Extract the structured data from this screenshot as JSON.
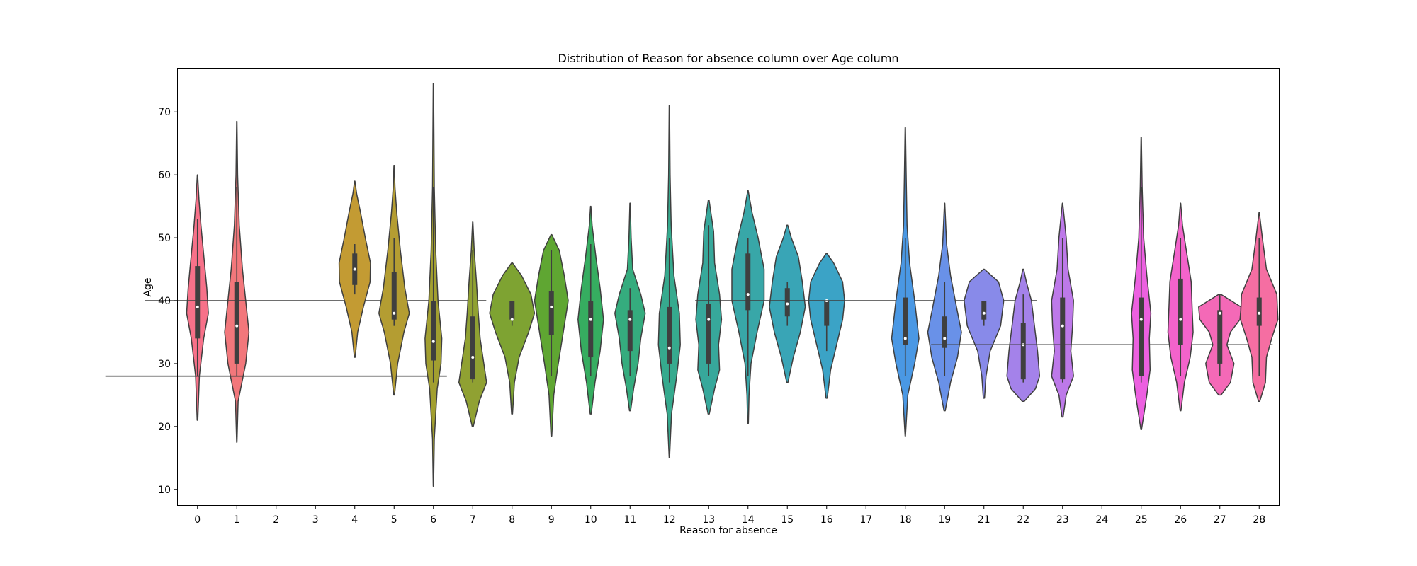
{
  "chart_data": {
    "type": "violin",
    "title": "Distribution of Reason for absence column over Age column",
    "xlabel": "Reason for absence",
    "ylabel": "Age",
    "ylim": [
      7.5,
      77
    ],
    "yticks": [
      10,
      20,
      30,
      40,
      50,
      60,
      70
    ],
    "grid": false,
    "categories": [
      {
        "label": "0",
        "color": "#f77189",
        "min": 21,
        "max": 60,
        "q1": 34,
        "median": 39,
        "q3": 45.5,
        "wlo": 28,
        "whi": 53,
        "bw": 7.3,
        "shape": [
          [
            21,
            0.02
          ],
          [
            28,
            0.12
          ],
          [
            34,
            0.4
          ],
          [
            38,
            0.7
          ],
          [
            42,
            0.6
          ],
          [
            46,
            0.45
          ],
          [
            52,
            0.22
          ],
          [
            56,
            0.1
          ],
          [
            60,
            0.01
          ]
        ]
      },
      {
        "label": "1",
        "color": "#f2777b",
        "min": 17.5,
        "max": 68.5,
        "q1": 30,
        "median": 36,
        "q3": 43,
        "wlo": 28,
        "whi": 58,
        "bw": 7.6,
        "shape": [
          [
            17.5,
            0.01
          ],
          [
            24,
            0.08
          ],
          [
            30,
            0.55
          ],
          [
            35,
            0.75
          ],
          [
            40,
            0.55
          ],
          [
            45,
            0.35
          ],
          [
            52,
            0.15
          ],
          [
            60,
            0.05
          ],
          [
            68.5,
            0.01
          ]
        ]
      },
      {
        "label": "2",
        "color": "#e78a3a",
        "min": 28,
        "max": 28,
        "q1": 28,
        "median": 28,
        "q3": 28,
        "wlo": 28,
        "whi": 28,
        "bw": 8.2,
        "shape": []
      },
      {
        "label": "3",
        "color": "#d5943a",
        "min": 40,
        "max": 40,
        "q1": 40,
        "median": 40,
        "q3": 40,
        "wlo": 40,
        "whi": 40,
        "bw": 8.2,
        "shape": []
      },
      {
        "label": "4",
        "color": "#c39b33",
        "min": 31,
        "max": 59,
        "q1": 42.5,
        "median": 45,
        "q3": 47.5,
        "wlo": 41,
        "whi": 49,
        "bw": 9.0,
        "shape": [
          [
            31,
            0.02
          ],
          [
            35,
            0.15
          ],
          [
            39,
            0.45
          ],
          [
            43,
            0.8
          ],
          [
            46,
            0.82
          ],
          [
            50,
            0.55
          ],
          [
            54,
            0.3
          ],
          [
            57,
            0.1
          ],
          [
            59,
            0.01
          ]
        ]
      },
      {
        "label": "5",
        "color": "#b49d32",
        "min": 25,
        "max": 61.5,
        "q1": 37,
        "median": 38,
        "q3": 44.5,
        "wlo": 36,
        "whi": 50,
        "bw": 8.4,
        "shape": [
          [
            25,
            0.02
          ],
          [
            30,
            0.2
          ],
          [
            35,
            0.55
          ],
          [
            38,
            0.85
          ],
          [
            42,
            0.6
          ],
          [
            48,
            0.35
          ],
          [
            54,
            0.15
          ],
          [
            58,
            0.05
          ],
          [
            61.5,
            0.01
          ]
        ]
      },
      {
        "label": "6",
        "color": "#a29f30",
        "min": 10.5,
        "max": 74.5,
        "q1": 30.5,
        "median": 33.5,
        "q3": 40,
        "wlo": 27,
        "whi": 58,
        "bw": 7.2,
        "shape": [
          [
            10.5,
            0.01
          ],
          [
            18,
            0.06
          ],
          [
            26,
            0.25
          ],
          [
            30,
            0.5
          ],
          [
            34,
            0.55
          ],
          [
            40,
            0.3
          ],
          [
            48,
            0.15
          ],
          [
            58,
            0.06
          ],
          [
            74.5,
            0.01
          ]
        ]
      },
      {
        "label": "7",
        "color": "#90a132",
        "min": 20,
        "max": 52.5,
        "q1": 27.5,
        "median": 31,
        "q3": 37.5,
        "wlo": 27,
        "whi": 48,
        "bw": 8.7,
        "shape": [
          [
            20,
            0.03
          ],
          [
            24,
            0.35
          ],
          [
            27,
            0.75
          ],
          [
            30,
            0.6
          ],
          [
            34,
            0.4
          ],
          [
            38,
            0.3
          ],
          [
            43,
            0.2
          ],
          [
            48,
            0.08
          ],
          [
            52.5,
            0.01
          ]
        ]
      },
      {
        "label": "8",
        "color": "#7ea332",
        "min": 22,
        "max": 46,
        "q1": 37,
        "median": 37,
        "q3": 40,
        "wlo": 36,
        "whi": 40,
        "bw": 11.1,
        "shape": [
          [
            22,
            0.02
          ],
          [
            27,
            0.1
          ],
          [
            31,
            0.3
          ],
          [
            35,
            0.7
          ],
          [
            38,
            0.95
          ],
          [
            41,
            0.8
          ],
          [
            44,
            0.4
          ],
          [
            46,
            0.02
          ]
        ]
      },
      {
        "label": "9",
        "color": "#5fa632",
        "min": 18.5,
        "max": 50.5,
        "q1": 34.5,
        "median": 39,
        "q3": 41.5,
        "wlo": 28,
        "whi": 48,
        "bw": 9.3,
        "shape": [
          [
            18.5,
            0.02
          ],
          [
            25,
            0.12
          ],
          [
            30,
            0.35
          ],
          [
            36,
            0.65
          ],
          [
            40,
            0.85
          ],
          [
            44,
            0.65
          ],
          [
            48,
            0.4
          ],
          [
            50.5,
            0.02
          ]
        ]
      },
      {
        "label": "10",
        "color": "#36ad60",
        "min": 22,
        "max": 55,
        "q1": 31,
        "median": 37,
        "q3": 40,
        "wlo": 28,
        "whi": 49,
        "bw": 8.0,
        "shape": [
          [
            22,
            0.03
          ],
          [
            27,
            0.25
          ],
          [
            32,
            0.55
          ],
          [
            37,
            0.75
          ],
          [
            42,
            0.55
          ],
          [
            47,
            0.3
          ],
          [
            52,
            0.08
          ],
          [
            55,
            0.01
          ]
        ]
      },
      {
        "label": "11",
        "color": "#35ac7e",
        "min": 22.5,
        "max": 55.5,
        "q1": 32,
        "median": 37,
        "q3": 38.5,
        "wlo": 28,
        "whi": 42,
        "bw": 8.4,
        "shape": [
          [
            22.5,
            0.03
          ],
          [
            26,
            0.2
          ],
          [
            30,
            0.45
          ],
          [
            34,
            0.6
          ],
          [
            38,
            0.85
          ],
          [
            41,
            0.6
          ],
          [
            45,
            0.15
          ],
          [
            50,
            0.06
          ],
          [
            55.5,
            0.01
          ]
        ]
      },
      {
        "label": "12",
        "color": "#36aa8e",
        "min": 15,
        "max": 71,
        "q1": 30,
        "median": 32.5,
        "q3": 39,
        "wlo": 27,
        "whi": 50,
        "bw": 8.6,
        "shape": [
          [
            15,
            0.01
          ],
          [
            22,
            0.12
          ],
          [
            28,
            0.4
          ],
          [
            33,
            0.6
          ],
          [
            38,
            0.55
          ],
          [
            44,
            0.25
          ],
          [
            52,
            0.1
          ],
          [
            60,
            0.04
          ],
          [
            71,
            0.01
          ]
        ]
      },
      {
        "label": "13",
        "color": "#37a89b",
        "min": 22,
        "max": 56,
        "q1": 30,
        "median": 37,
        "q3": 39.5,
        "wlo": 28,
        "whi": 52,
        "bw": 9.3,
        "shape": [
          [
            22,
            0.03
          ],
          [
            26,
            0.3
          ],
          [
            29,
            0.55
          ],
          [
            33,
            0.5
          ],
          [
            37,
            0.65
          ],
          [
            41,
            0.55
          ],
          [
            46,
            0.3
          ],
          [
            51,
            0.25
          ],
          [
            56,
            0.02
          ]
        ]
      },
      {
        "label": "14",
        "color": "#38a7a8",
        "min": 20.5,
        "max": 57.5,
        "q1": 38.5,
        "median": 41,
        "q3": 47.5,
        "wlo": 28,
        "whi": 50,
        "bw": 9.5,
        "shape": [
          [
            20.5,
            0.02
          ],
          [
            25,
            0.05
          ],
          [
            30,
            0.15
          ],
          [
            35,
            0.45
          ],
          [
            40,
            0.8
          ],
          [
            45,
            0.8
          ],
          [
            50,
            0.5
          ],
          [
            54,
            0.2
          ],
          [
            57.5,
            0.01
          ]
        ]
      },
      {
        "label": "15",
        "color": "#39a5b6",
        "min": 27,
        "max": 52,
        "q1": 37.5,
        "median": 39.5,
        "q3": 42,
        "wlo": 36,
        "whi": 43,
        "bw": 9.4,
        "shape": [
          [
            27,
            0.03
          ],
          [
            31,
            0.3
          ],
          [
            35,
            0.65
          ],
          [
            39,
            0.9
          ],
          [
            43,
            0.75
          ],
          [
            47,
            0.55
          ],
          [
            50,
            0.2
          ],
          [
            52,
            0.02
          ]
        ]
      },
      {
        "label": "16",
        "color": "#3ba3c6",
        "min": 24.5,
        "max": 47.5,
        "q1": 36,
        "median": 40,
        "q3": 40,
        "wlo": 32,
        "whi": 40,
        "bw": 9.4,
        "shape": [
          [
            24.5,
            0.03
          ],
          [
            29,
            0.2
          ],
          [
            33,
            0.5
          ],
          [
            37,
            0.8
          ],
          [
            40,
            0.9
          ],
          [
            43,
            0.8
          ],
          [
            46,
            0.35
          ],
          [
            47.5,
            0.02
          ]
        ]
      },
      {
        "label": "17",
        "color": "#3f9fd8",
        "min": 40,
        "max": 40,
        "q1": 40,
        "median": 40,
        "q3": 40,
        "wlo": 40,
        "whi": 40,
        "bw": 8.2,
        "shape": []
      },
      {
        "label": "18",
        "color": "#4a98e4",
        "min": 18.5,
        "max": 67.5,
        "q1": 33,
        "median": 34,
        "q3": 40.5,
        "wlo": 28,
        "whi": 50,
        "bw": 8.0,
        "shape": [
          [
            18.5,
            0.01
          ],
          [
            25,
            0.15
          ],
          [
            30,
            0.55
          ],
          [
            34,
            0.8
          ],
          [
            40,
            0.55
          ],
          [
            46,
            0.25
          ],
          [
            52,
            0.1
          ],
          [
            60,
            0.05
          ],
          [
            67.5,
            0.01
          ]
        ]
      },
      {
        "label": "19",
        "color": "#6991e8",
        "min": 22.5,
        "max": 55.5,
        "q1": 32.5,
        "median": 34,
        "q3": 37.5,
        "wlo": 28,
        "whi": 43,
        "bw": 9.3,
        "shape": [
          [
            22.5,
            0.03
          ],
          [
            27,
            0.3
          ],
          [
            31,
            0.65
          ],
          [
            35,
            0.85
          ],
          [
            39,
            0.6
          ],
          [
            44,
            0.3
          ],
          [
            49,
            0.1
          ],
          [
            55.5,
            0.01
          ]
        ]
      },
      {
        "label": "21",
        "color": "#888ae9",
        "min": 24.5,
        "max": 45,
        "q1": 37,
        "median": 38,
        "q3": 40,
        "wlo": 36,
        "whi": 40,
        "bw": 9.8,
        "shape": [
          [
            24.5,
            0.03
          ],
          [
            28,
            0.1
          ],
          [
            32,
            0.3
          ],
          [
            36,
            0.8
          ],
          [
            40,
            0.95
          ],
          [
            43,
            0.7
          ],
          [
            45,
            0.02
          ]
        ]
      },
      {
        "label": "22",
        "color": "#a482ea",
        "min": 24,
        "max": 45,
        "q1": 27.5,
        "median": 33,
        "q3": 36.5,
        "wlo": 27,
        "whi": 41,
        "bw": 9.6,
        "shape": [
          [
            24,
            0.05
          ],
          [
            26,
            0.6
          ],
          [
            28,
            0.8
          ],
          [
            32,
            0.7
          ],
          [
            36,
            0.55
          ],
          [
            40,
            0.4
          ],
          [
            43,
            0.15
          ],
          [
            45,
            0.02
          ]
        ]
      },
      {
        "label": "23",
        "color": "#bd79e9",
        "min": 21.5,
        "max": 55.5,
        "q1": 27.5,
        "median": 36,
        "q3": 40.5,
        "wlo": 27,
        "whi": 50,
        "bw": 8.6,
        "shape": [
          [
            21.5,
            0.03
          ],
          [
            25,
            0.2
          ],
          [
            28,
            0.6
          ],
          [
            32,
            0.45
          ],
          [
            36,
            0.55
          ],
          [
            40,
            0.6
          ],
          [
            45,
            0.3
          ],
          [
            50,
            0.2
          ],
          [
            55.5,
            0.01
          ]
        ]
      },
      {
        "label": "24",
        "color": "#d56ee8",
        "min": 33,
        "max": 33,
        "q1": 33,
        "median": 33,
        "q3": 33,
        "wlo": 33,
        "whi": 33,
        "bw": 8.2,
        "shape": []
      },
      {
        "label": "25",
        "color": "#ec60e0",
        "min": 19.5,
        "max": 66,
        "q1": 28,
        "median": 37,
        "q3": 40.5,
        "wlo": 27,
        "whi": 58,
        "bw": 7.6,
        "shape": [
          [
            19.5,
            0.02
          ],
          [
            25,
            0.35
          ],
          [
            29,
            0.55
          ],
          [
            34,
            0.5
          ],
          [
            38,
            0.6
          ],
          [
            44,
            0.35
          ],
          [
            50,
            0.15
          ],
          [
            58,
            0.06
          ],
          [
            66,
            0.01
          ]
        ]
      },
      {
        "label": "26",
        "color": "#f363cb",
        "min": 22.5,
        "max": 55.5,
        "q1": 33,
        "median": 37,
        "q3": 43.5,
        "wlo": 28,
        "whi": 50,
        "bw": 9.1,
        "shape": [
          [
            22.5,
            0.02
          ],
          [
            27,
            0.2
          ],
          [
            31,
            0.5
          ],
          [
            35,
            0.65
          ],
          [
            39,
            0.6
          ],
          [
            43,
            0.55
          ],
          [
            48,
            0.3
          ],
          [
            52,
            0.1
          ],
          [
            55.5,
            0.01
          ]
        ]
      },
      {
        "label": "27",
        "color": "#f469b7",
        "min": 25,
        "max": 41,
        "q1": 30,
        "median": 38,
        "q3": 38.5,
        "wlo": 28,
        "whi": 41,
        "bw": 11.1,
        "shape": [
          [
            25,
            0.05
          ],
          [
            27,
            0.45
          ],
          [
            30,
            0.6
          ],
          [
            33,
            0.3
          ],
          [
            35,
            0.45
          ],
          [
            37,
            0.85
          ],
          [
            39,
            0.9
          ],
          [
            41,
            0.05
          ]
        ]
      },
      {
        "label": "28",
        "color": "#f56ea2",
        "min": 24,
        "max": 54,
        "q1": 36,
        "median": 38,
        "q3": 40.5,
        "wlo": 28,
        "whi": 50,
        "bw": 9.8,
        "shape": [
          [
            24,
            0.03
          ],
          [
            27,
            0.3
          ],
          [
            31,
            0.35
          ],
          [
            34,
            0.6
          ],
          [
            37,
            0.9
          ],
          [
            41,
            0.85
          ],
          [
            45,
            0.35
          ],
          [
            50,
            0.15
          ],
          [
            54,
            0.01
          ]
        ]
      }
    ]
  }
}
